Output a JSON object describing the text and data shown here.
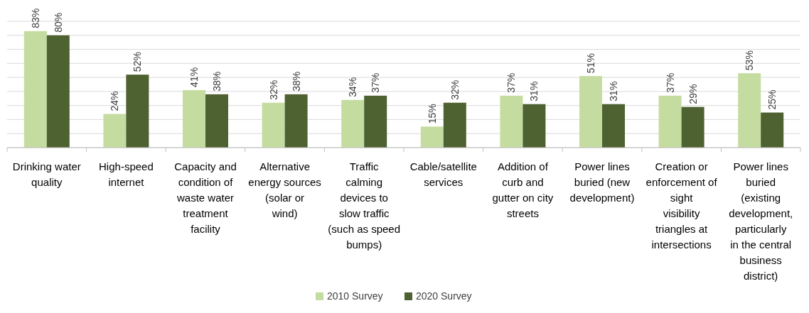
{
  "chart_data": {
    "type": "bar",
    "categories": [
      "Drinking water quality",
      "High-speed internet",
      "Capacity and condition of waste water treatment facility",
      "Alternative energy sources (solar or wind)",
      "Traffic calming devices to slow traffic (such as speed bumps)",
      "Cable/satellite services",
      "Addition of curb and gutter on city streets",
      "Power lines buried (new development)",
      "Creation or enforcement of sight visibility triangles at intersections",
      "Power lines buried (existing development, particularly in the central business district)"
    ],
    "series": [
      {
        "name": "2010 Survey",
        "color": "#c5dca0",
        "values": [
          83,
          24,
          41,
          32,
          34,
          15,
          37,
          51,
          37,
          53
        ],
        "value_labels": [
          "83%",
          "24%",
          "41%",
          "32%",
          "34%",
          "15%",
          "37%",
          "51%",
          "37%",
          "53%"
        ]
      },
      {
        "name": "2020 Survey",
        "color": "#4e6130",
        "values": [
          80,
          52,
          38,
          38,
          37,
          32,
          31,
          31,
          29,
          25
        ],
        "value_labels": [
          "80%",
          "52%",
          "38%",
          "38%",
          "37%",
          "32%",
          "31%",
          "31%",
          "29%",
          "25%"
        ]
      }
    ],
    "ylim": [
      0,
      90
    ],
    "yticks": [
      {
        "value": 0,
        "label": null
      },
      {
        "value": 10,
        "label": null
      },
      {
        "value": 20,
        "label": null
      },
      {
        "value": 30,
        "label": null
      },
      {
        "value": 40,
        "label": null
      },
      {
        "value": 50,
        "label": null
      },
      {
        "value": 60,
        "label": null
      },
      {
        "value": 70,
        "label": null
      },
      {
        "value": 80,
        "label": null
      },
      {
        "value": 90,
        "label": null
      }
    ],
    "grid": "y",
    "legend": "bottom",
    "tick_labels": "x"
  }
}
